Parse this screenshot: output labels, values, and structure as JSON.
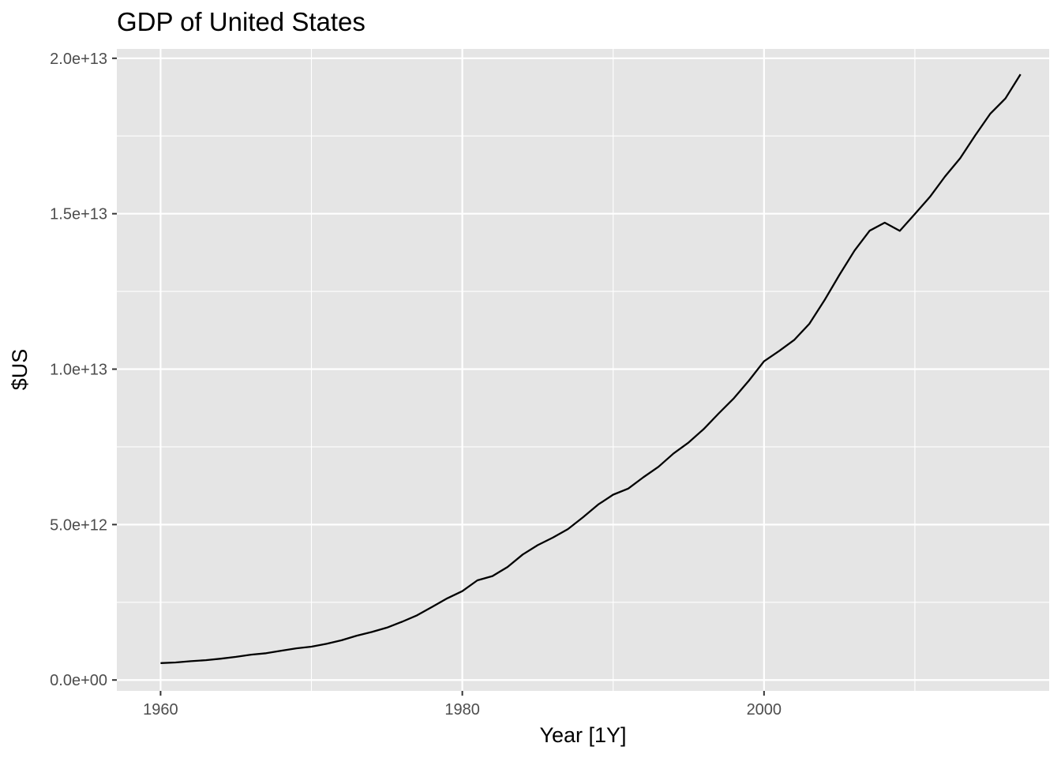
{
  "chart_data": {
    "type": "line",
    "title": "GDP of United States",
    "xlabel": "Year [1Y]",
    "ylabel": "$US",
    "xlim": [
      1957.1,
      2018.9
    ],
    "ylim": [
      -350000000000.0,
      20300000000000.0
    ],
    "x_ticks": [
      {
        "value": 1960,
        "label": "1960"
      },
      {
        "value": 1980,
        "label": "1980"
      },
      {
        "value": 2000,
        "label": "2000"
      }
    ],
    "x_minor_ticks": [
      1970,
      1990,
      2010
    ],
    "y_ticks": [
      {
        "value": 0,
        "label": "0.0e+00"
      },
      {
        "value": 5000000000000,
        "label": "5.0e+12"
      },
      {
        "value": 10000000000000,
        "label": "1.0e+13"
      },
      {
        "value": 15000000000000,
        "label": "1.5e+13"
      },
      {
        "value": 20000000000000,
        "label": "2.0e+13"
      }
    ],
    "y_minor_ticks": [
      2500000000000,
      7500000000000,
      12500000000000,
      17500000000000
    ],
    "grid": true,
    "colors": {
      "panel": "#e5e5e5",
      "grid": "#ffffff",
      "line": "#000000",
      "tick": "#4d4d4d"
    },
    "series": [
      {
        "x": [
          1960,
          1961,
          1962,
          1963,
          1964,
          1965,
          1966,
          1967,
          1968,
          1969,
          1970,
          1971,
          1972,
          1973,
          1974,
          1975,
          1976,
          1977,
          1978,
          1979,
          1980,
          1981,
          1982,
          1983,
          1984,
          1985,
          1986,
          1987,
          1988,
          1989,
          1990,
          1991,
          1992,
          1993,
          1994,
          1995,
          1996,
          1997,
          1998,
          1999,
          2000,
          2001,
          2002,
          2003,
          2004,
          2005,
          2006,
          2007,
          2008,
          2009,
          2010,
          2011,
          2012,
          2013,
          2014,
          2015,
          2016,
          2017
        ],
        "values": [
          543300000000,
          563300000000,
          605100000000,
          638600000000,
          685800000000,
          743700000000,
          815000000000,
          861700000000,
          942500000000,
          1019900000000,
          1073300000000,
          1164900000000,
          1279100000000,
          1425400000000,
          1545200000000,
          1684900000000,
          1873400000000,
          2081800000000,
          2351600000000,
          2627300000000,
          2857300000000,
          3207000000000,
          3343800000000,
          3634000000000,
          4037600000000,
          4338900000000,
          4579600000000,
          4855200000000,
          5236400000000,
          5641600000000,
          5963100000000,
          6158100000000,
          6520300000000,
          6858600000000,
          7287200000000,
          7639700000000,
          8073100000000,
          8577600000000,
          9062800000000,
          9631200000000,
          10251000000000,
          10581800000000,
          10936400000000,
          11458200000000,
          12213700000000,
          13036600000000,
          13814600000000,
          14451900000000,
          14712800000000,
          14448900000000,
          14992100000000,
          15542600000000,
          16197000000000,
          16784800000000,
          17521700000000,
          18219300000000,
          18707200000000,
          19485400000000
        ]
      }
    ]
  }
}
